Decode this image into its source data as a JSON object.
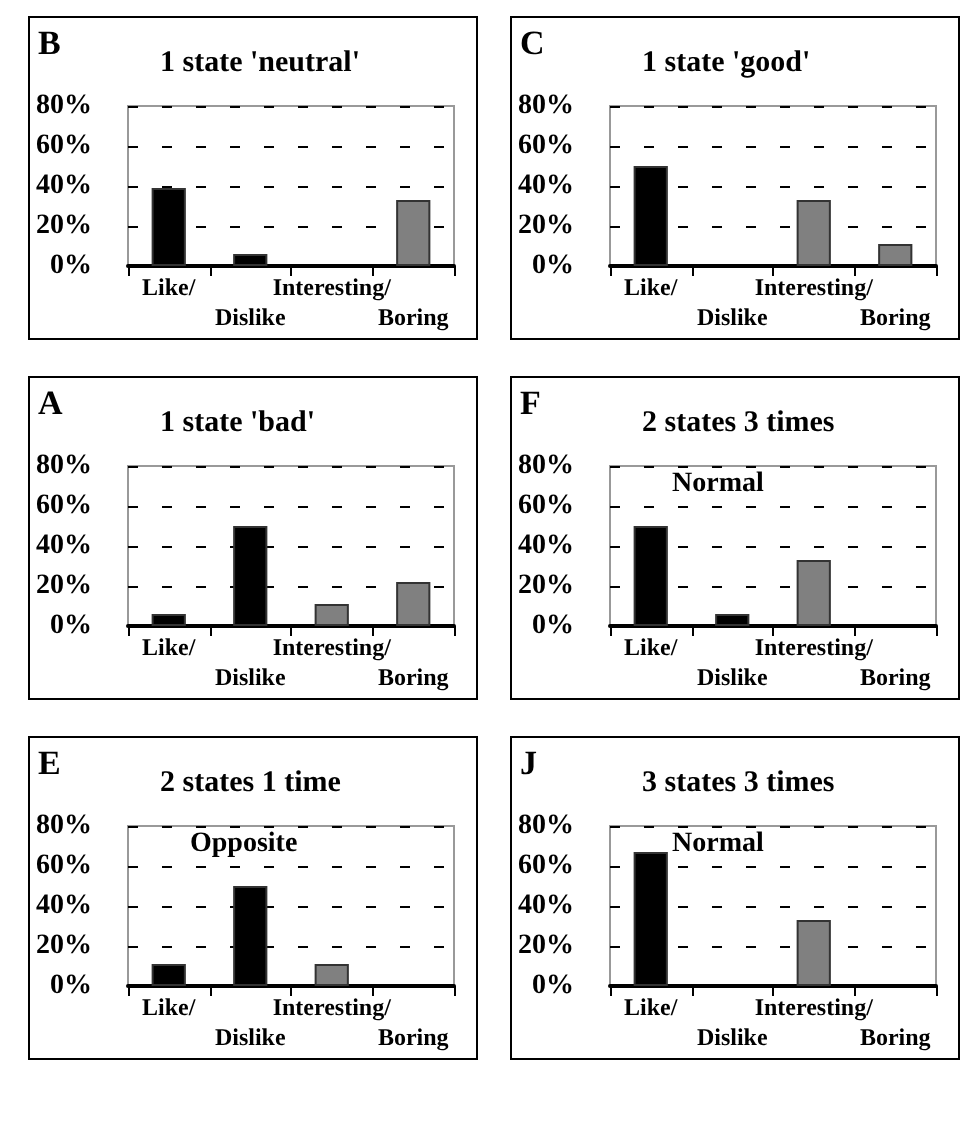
{
  "chart_data": [
    {
      "type": "bar",
      "title": "1 state 'neutral'",
      "annotations": [
        "B"
      ],
      "categories": [
        "Like/",
        "Dislike",
        "Interesting/",
        "Boring"
      ],
      "values": [
        39,
        6,
        0,
        33
      ],
      "colors": [
        "#000000",
        "#000000",
        "#808080",
        "#808080"
      ],
      "ylim": [
        0,
        80
      ],
      "yticks": [
        {
          "value": 0,
          "label": "0%"
        },
        {
          "value": 20,
          "label": "20%"
        },
        {
          "value": 40,
          "label": "40%"
        },
        {
          "value": 60,
          "label": "60%"
        },
        {
          "value": 80,
          "label": "80%"
        }
      ],
      "grid": "y"
    },
    {
      "type": "bar",
      "title": "1 state 'good'",
      "annotations": [
        "C"
      ],
      "categories": [
        "Like/",
        "Dislike",
        "Interesting/",
        "Boring"
      ],
      "values": [
        50,
        0,
        33,
        11
      ],
      "colors": [
        "#000000",
        "#000000",
        "#808080",
        "#808080"
      ],
      "ylim": [
        0,
        80
      ],
      "yticks": [
        {
          "value": 0,
          "label": "0%"
        },
        {
          "value": 20,
          "label": "20%"
        },
        {
          "value": 40,
          "label": "40%"
        },
        {
          "value": 60,
          "label": "60%"
        },
        {
          "value": 80,
          "label": "80%"
        }
      ],
      "grid": "y"
    },
    {
      "type": "bar",
      "title": "1 state 'bad'",
      "annotations": [
        "A"
      ],
      "categories": [
        "Like/",
        "Dislike",
        "Interesting/",
        "Boring"
      ],
      "values": [
        6,
        50,
        11,
        22
      ],
      "colors": [
        "#000000",
        "#000000",
        "#808080",
        "#808080"
      ],
      "ylim": [
        0,
        80
      ],
      "yticks": [
        {
          "value": 0,
          "label": "0%"
        },
        {
          "value": 20,
          "label": "20%"
        },
        {
          "value": 40,
          "label": "40%"
        },
        {
          "value": 60,
          "label": "60%"
        },
        {
          "value": 80,
          "label": "80%"
        }
      ],
      "grid": "y"
    },
    {
      "type": "bar",
      "title": "2 states 3 times",
      "subtitle": "Normal",
      "annotations": [
        "F"
      ],
      "categories": [
        "Like/",
        "Dislike",
        "Interesting/",
        "Boring"
      ],
      "values": [
        50,
        6,
        33,
        0
      ],
      "colors": [
        "#000000",
        "#000000",
        "#808080",
        "#808080"
      ],
      "ylim": [
        0,
        80
      ],
      "yticks": [
        {
          "value": 0,
          "label": "0%"
        },
        {
          "value": 20,
          "label": "20%"
        },
        {
          "value": 40,
          "label": "40%"
        },
        {
          "value": 60,
          "label": "60%"
        },
        {
          "value": 80,
          "label": "80%"
        }
      ],
      "grid": "y"
    },
    {
      "type": "bar",
      "title": "2 states 1 time",
      "subtitle": "Opposite",
      "annotations": [
        "E"
      ],
      "categories": [
        "Like/",
        "Dislike",
        "Interesting/",
        "Boring"
      ],
      "values": [
        11,
        50,
        11,
        0
      ],
      "colors": [
        "#000000",
        "#000000",
        "#808080",
        "#808080"
      ],
      "ylim": [
        0,
        80
      ],
      "yticks": [
        {
          "value": 0,
          "label": "0%"
        },
        {
          "value": 20,
          "label": "20%"
        },
        {
          "value": 40,
          "label": "40%"
        },
        {
          "value": 60,
          "label": "60%"
        },
        {
          "value": 80,
          "label": "80%"
        }
      ],
      "grid": "y"
    },
    {
      "type": "bar",
      "title": "3 states 3 times",
      "subtitle": "Normal",
      "annotations": [
        "J"
      ],
      "categories": [
        "Like/",
        "Dislike",
        "Interesting/",
        "Boring"
      ],
      "values": [
        67,
        0,
        33,
        0
      ],
      "colors": [
        "#000000",
        "#000000",
        "#808080",
        "#808080"
      ],
      "ylim": [
        0,
        80
      ],
      "yticks": [
        {
          "value": 0,
          "label": "0%"
        },
        {
          "value": 20,
          "label": "20%"
        },
        {
          "value": 40,
          "label": "40%"
        },
        {
          "value": 60,
          "label": "60%"
        },
        {
          "value": 80,
          "label": "80%"
        }
      ],
      "grid": "y"
    }
  ]
}
